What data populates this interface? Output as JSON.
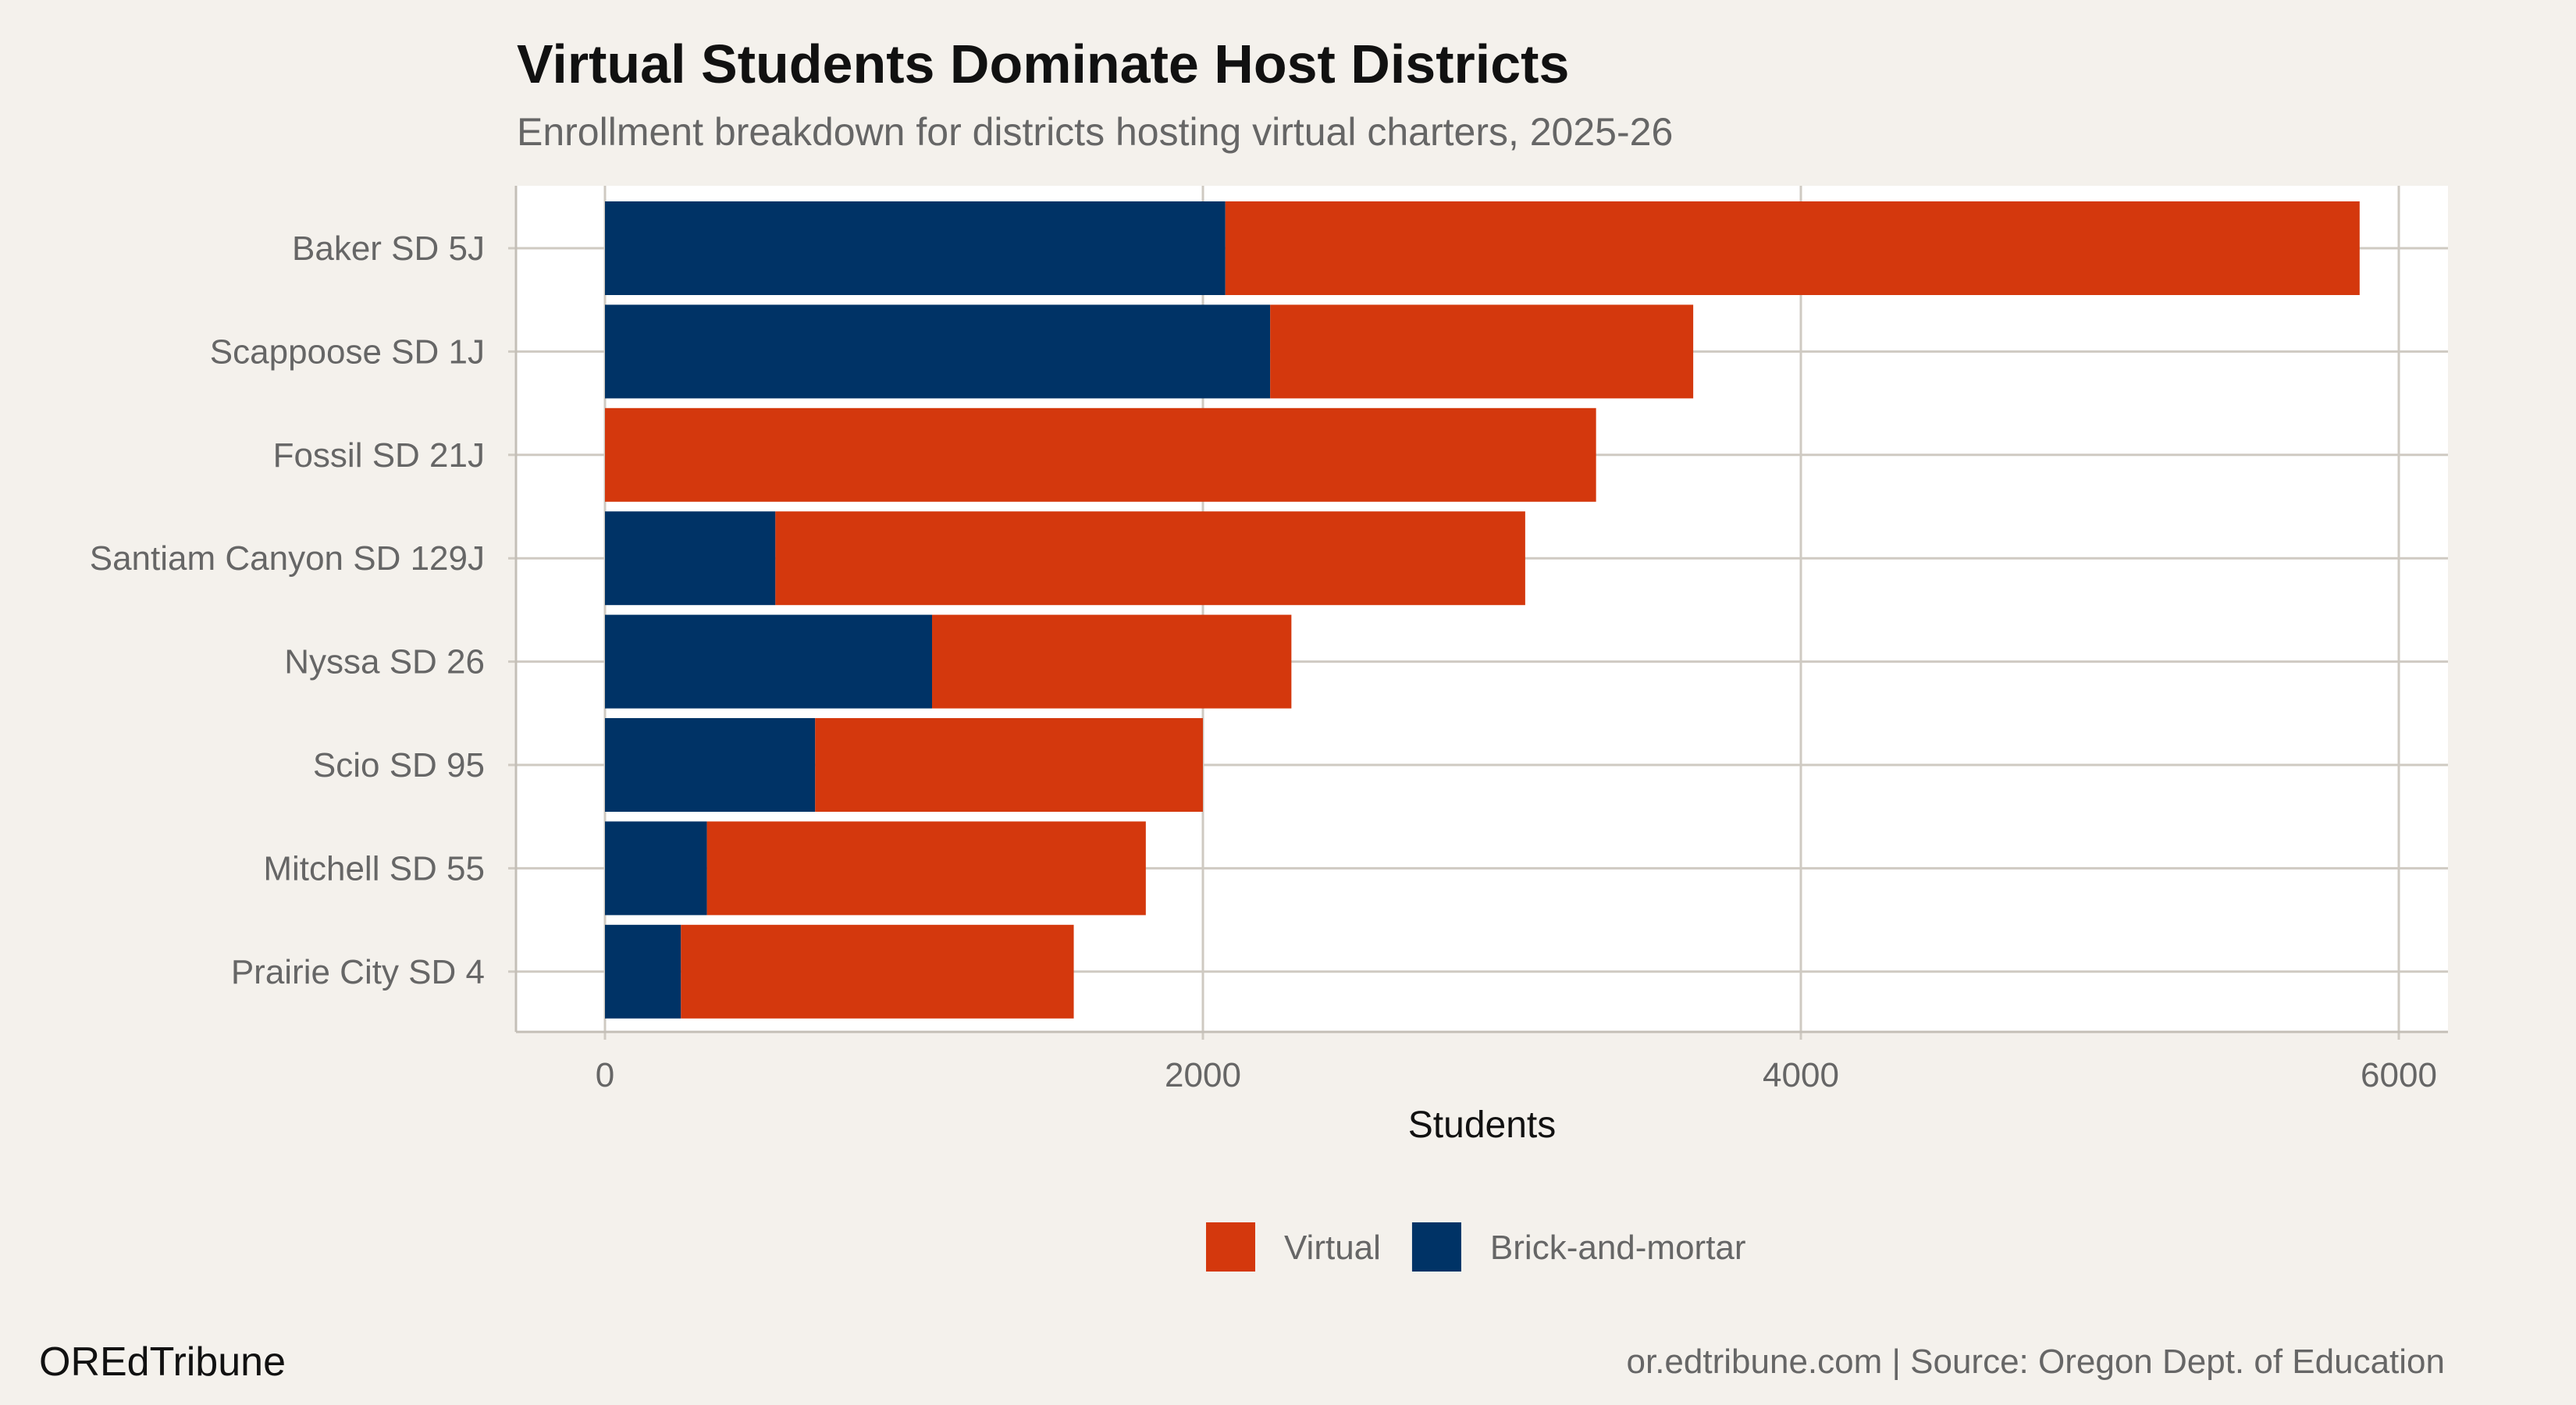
{
  "chart_data": {
    "type": "bar",
    "orientation": "horizontal",
    "stacked": true,
    "title": "Virtual Students Dominate Host Districts",
    "subtitle": "Enrollment breakdown for districts hosting virtual charters, 2025-26",
    "xlabel": "Students",
    "ylabel": "",
    "xlim": [
      0,
      6000
    ],
    "xticks": [
      "0",
      "2000",
      "4000",
      "6000"
    ],
    "grid": true,
    "legend_position": "bottom",
    "categories": [
      "Baker SD 5J",
      "Scappoose SD 1J",
      "Fossil SD 21J",
      "Santiam Canyon SD 129J",
      "Nyssa SD 26",
      "Scio SD 95",
      "Mitchell SD 55",
      "Prairie City SD 4"
    ],
    "series": [
      {
        "name": "Brick-and-mortar",
        "color": "#003366",
        "values": [
          2075,
          2225,
          0,
          570,
          1094,
          703,
          341,
          254
        ]
      },
      {
        "name": "Virtual",
        "color": "#d4380d",
        "values": [
          3794,
          1415,
          3315,
          2508,
          1202,
          1297,
          1468,
          1314
        ]
      }
    ],
    "legend": [
      {
        "name": "Virtual",
        "color": "#d4380d"
      },
      {
        "name": "Brick-and-mortar",
        "color": "#003366"
      }
    ]
  },
  "footer": {
    "brand": "OREdTribune",
    "caption": "or.edtribune.com | Source: Oregon Dept. of Education"
  }
}
